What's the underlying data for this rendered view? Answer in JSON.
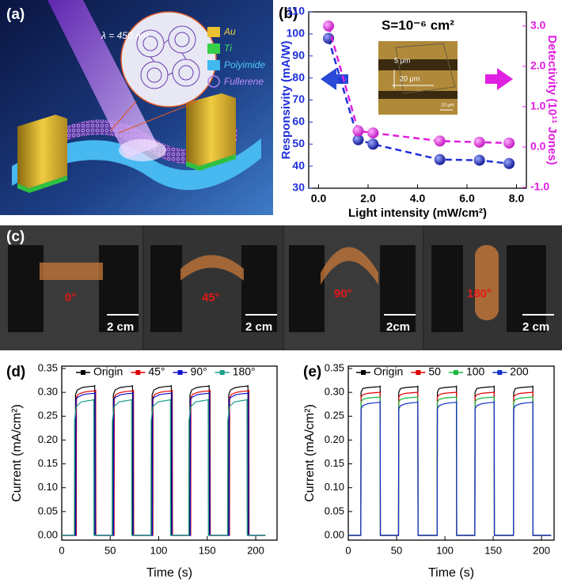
{
  "panels": {
    "a": {
      "label": "(a)",
      "wavelength": "λ = 450 nm",
      "legend": [
        "Au",
        "Ti",
        "Polyimide",
        "Fullerene"
      ]
    },
    "c": {
      "label": "(c)",
      "angles": [
        "0°",
        "45°",
        "90°",
        "180°"
      ],
      "scales": [
        "2 cm",
        "2 cm",
        "2cm",
        "2 cm"
      ]
    }
  },
  "chart_data": [
    {
      "type": "line",
      "label": "(b)",
      "annotation": "S=10⁻⁶ cm²",
      "inset_labels": [
        "5 μm",
        "20 μm",
        "10 μm"
      ],
      "xlabel": "Light intensity (mW/cm²)",
      "ylabel": "Responsivity (mA/W)",
      "y2label": "Detectivity (10¹¹ Jones)",
      "x": [
        0.4,
        1.6,
        2.2,
        4.9,
        6.5,
        7.7
      ],
      "series": [
        {
          "color": "#1f2fd8",
          "values": [
            98,
            52,
            50,
            43,
            42.7,
            41.2
          ]
        },
        {
          "color": "#e01ee0",
          "axis": "y2",
          "values": [
            3.0,
            0.4,
            0.35,
            0.15,
            0.12,
            0.1
          ]
        }
      ],
      "xlim": [
        -0.4,
        8.4
      ],
      "xticks": [
        {
          "value": 0,
          "label": "0.0"
        },
        {
          "value": 2,
          "label": "2.0"
        },
        {
          "value": 4,
          "label": "4.0"
        },
        {
          "value": 6,
          "label": "6.0"
        },
        {
          "value": 8,
          "label": "8.0"
        }
      ],
      "ylim": [
        30,
        110
      ],
      "yticks": [
        30,
        40,
        50,
        60,
        70,
        80,
        90,
        100,
        110
      ],
      "y2lim": [
        -1.02,
        3.35
      ],
      "y2ticks": [
        {
          "value": -1,
          "label": "-1.0"
        },
        {
          "value": 0,
          "label": "0.0"
        },
        {
          "value": 1,
          "label": "1.0"
        },
        {
          "value": 2,
          "label": "2.0"
        },
        {
          "value": 3,
          "label": "3.0"
        }
      ],
      "dashed": true,
      "markers": true
    },
    {
      "type": "line",
      "label": "(d)",
      "xlabel": "Time (s)",
      "ylabel": "Current (mA/cm²)",
      "series": [
        {
          "name": "Origin",
          "color": "#000000",
          "x": [
            0,
            14,
            14.2,
            16,
            21,
            27,
            33,
            34,
            34.2,
            53,
            53.2,
            55,
            60,
            66,
            72,
            73,
            73.2,
            93,
            93.2,
            95,
            100,
            106,
            112,
            113,
            113.2,
            132,
            132.2,
            134,
            139,
            145,
            151,
            152,
            152.2,
            172,
            172.2,
            174,
            179,
            185,
            191,
            192,
            192.2,
            210
          ],
          "values": [
            0,
            0,
            0.295,
            0.305,
            0.31,
            0.312,
            0.313,
            0.314,
            0,
            0,
            0.295,
            0.305,
            0.31,
            0.312,
            0.313,
            0.314,
            0,
            0,
            0.295,
            0.305,
            0.31,
            0.312,
            0.313,
            0.314,
            0,
            0,
            0.295,
            0.305,
            0.31,
            0.312,
            0.313,
            0.314,
            0,
            0,
            0.295,
            0.305,
            0.31,
            0.312,
            0.313,
            0.314,
            0,
            0
          ]
        },
        {
          "name": "45°",
          "color": "#e00000",
          "x": [
            0,
            15,
            15.2,
            17,
            22,
            28,
            34,
            35,
            35.2,
            54,
            54.2,
            56,
            61,
            67,
            73,
            74,
            74.2,
            94,
            94.2,
            96,
            101,
            107,
            113,
            114,
            114.2,
            133,
            133.2,
            135,
            140,
            146,
            152,
            153,
            153.2,
            173,
            173.2,
            175,
            180,
            186,
            192,
            193,
            193.2,
            210
          ],
          "values": [
            0,
            0,
            0.29,
            0.296,
            0.3,
            0.302,
            0.303,
            0.304,
            0,
            0,
            0.29,
            0.296,
            0.3,
            0.302,
            0.303,
            0.304,
            0,
            0,
            0.29,
            0.296,
            0.3,
            0.302,
            0.303,
            0.304,
            0,
            0,
            0.29,
            0.296,
            0.3,
            0.302,
            0.303,
            0.304,
            0,
            0,
            0.29,
            0.296,
            0.3,
            0.302,
            0.303,
            0.304,
            0,
            0
          ]
        },
        {
          "name": "90°",
          "color": "#1010d0",
          "x": [
            0,
            14.5,
            14.7,
            16.5,
            21.5,
            27.5,
            33.5,
            34.5,
            34.7,
            53.5,
            53.7,
            55.5,
            60.5,
            66.5,
            72.5,
            73.5,
            73.7,
            93.5,
            93.7,
            95.5,
            100.5,
            106.5,
            112.5,
            113.5,
            113.7,
            132.5,
            132.7,
            134.5,
            139.5,
            145.5,
            151.5,
            152.5,
            152.7,
            172.5,
            172.7,
            174.5,
            179.5,
            185.5,
            191.5,
            192.5,
            192.7,
            210
          ],
          "values": [
            0,
            0,
            0.285,
            0.29,
            0.295,
            0.297,
            0.298,
            0.299,
            0,
            0,
            0.285,
            0.29,
            0.295,
            0.297,
            0.298,
            0.299,
            0,
            0,
            0.285,
            0.29,
            0.295,
            0.297,
            0.298,
            0.299,
            0,
            0,
            0.285,
            0.29,
            0.295,
            0.297,
            0.298,
            0.299,
            0,
            0,
            0.285,
            0.29,
            0.295,
            0.297,
            0.298,
            0.299,
            0,
            0
          ]
        },
        {
          "name": "180°",
          "color": "#1a9e8a",
          "x": [
            0,
            13,
            13.2,
            15,
            20,
            26,
            32,
            33,
            33.2,
            52,
            52.2,
            54,
            59,
            65,
            71,
            72,
            72.2,
            92,
            92.2,
            94,
            99,
            105,
            111,
            112,
            112.2,
            131,
            131.2,
            133,
            138,
            144,
            150,
            151,
            151.2,
            171,
            171.2,
            173,
            178,
            184,
            190,
            191,
            191.2,
            210
          ],
          "values": [
            0,
            0,
            0.24,
            0.27,
            0.28,
            0.282,
            0.284,
            0.285,
            0,
            0,
            0.24,
            0.27,
            0.28,
            0.282,
            0.284,
            0.285,
            0,
            0,
            0.24,
            0.27,
            0.28,
            0.282,
            0.284,
            0.285,
            0,
            0,
            0.24,
            0.27,
            0.28,
            0.282,
            0.284,
            0.285,
            0,
            0,
            0.24,
            0.27,
            0.28,
            0.282,
            0.284,
            0.285,
            0,
            0
          ]
        }
      ],
      "xlim": [
        0,
        222
      ],
      "xticks": [
        0,
        50,
        100,
        150,
        200
      ],
      "ylim": [
        -0.01,
        0.355
      ],
      "yticks": [
        {
          "value": 0,
          "label": "0.00"
        },
        0.05,
        {
          "value": 0.1,
          "label": "0.10"
        },
        0.15,
        {
          "value": 0.2,
          "label": "0.20"
        },
        0.25,
        {
          "value": 0.3,
          "label": "0.30"
        },
        0.35
      ]
    },
    {
      "type": "line",
      "label": "(e)",
      "xlabel": "Time (s)",
      "ylabel": "Current (mA/cm²)",
      "x": [
        0,
        13,
        13.2,
        15,
        20,
        26,
        32,
        33,
        33.2,
        52,
        52.2,
        54,
        59,
        65,
        71,
        72,
        72.2,
        92,
        92.2,
        94,
        99,
        105,
        111,
        112,
        112.2,
        131,
        131.2,
        133,
        138,
        144,
        150,
        151,
        151.2,
        171,
        171.2,
        173,
        178,
        184,
        190,
        191,
        191.2,
        210
      ],
      "series": [
        {
          "name": "Origin",
          "color": "#000000",
          "values": [
            0,
            0,
            0.3,
            0.308,
            0.31,
            0.311,
            0.312,
            0.313,
            0,
            0,
            0.3,
            0.308,
            0.31,
            0.311,
            0.312,
            0.313,
            0,
            0,
            0.3,
            0.308,
            0.31,
            0.311,
            0.312,
            0.313,
            0,
            0,
            0.3,
            0.308,
            0.31,
            0.311,
            0.312,
            0.313,
            0,
            0,
            0.3,
            0.308,
            0.31,
            0.311,
            0.312,
            0.313,
            0,
            0
          ]
        },
        {
          "name": "50",
          "color": "#e00000",
          "values": [
            0,
            0,
            0.29,
            0.295,
            0.298,
            0.299,
            0.3,
            0.3,
            0,
            0,
            0.29,
            0.295,
            0.298,
            0.299,
            0.3,
            0.3,
            0,
            0,
            0.29,
            0.295,
            0.298,
            0.299,
            0.3,
            0.3,
            0,
            0,
            0.29,
            0.295,
            0.298,
            0.299,
            0.3,
            0.3,
            0,
            0,
            0.29,
            0.295,
            0.298,
            0.299,
            0.3,
            0.3,
            0,
            0
          ]
        },
        {
          "name": "100",
          "color": "#18b840",
          "values": [
            0,
            0,
            0.28,
            0.285,
            0.288,
            0.289,
            0.29,
            0.29,
            0,
            0,
            0.28,
            0.285,
            0.288,
            0.289,
            0.29,
            0.29,
            0,
            0,
            0.28,
            0.285,
            0.288,
            0.289,
            0.29,
            0.29,
            0,
            0,
            0.28,
            0.285,
            0.288,
            0.289,
            0.29,
            0.29,
            0,
            0,
            0.28,
            0.285,
            0.288,
            0.289,
            0.29,
            0.29,
            0,
            0
          ]
        },
        {
          "name": "200",
          "color": "#1030c8",
          "values": [
            0,
            0,
            0.265,
            0.272,
            0.276,
            0.278,
            0.279,
            0.28,
            0,
            0,
            0.265,
            0.272,
            0.276,
            0.278,
            0.279,
            0.28,
            0,
            0,
            0.265,
            0.272,
            0.276,
            0.278,
            0.279,
            0.28,
            0,
            0,
            0.265,
            0.272,
            0.276,
            0.278,
            0.279,
            0.28,
            0,
            0,
            0.265,
            0.272,
            0.276,
            0.278,
            0.279,
            0.28,
            0,
            0
          ]
        }
      ],
      "xlim": [
        0,
        213
      ],
      "xticks": [
        0,
        50,
        100,
        150,
        200
      ],
      "ylim": [
        -0.01,
        0.355
      ],
      "yticks": [
        {
          "value": 0,
          "label": "0.00"
        },
        0.05,
        {
          "value": 0.1,
          "label": "0.10"
        },
        0.15,
        {
          "value": 0.2,
          "label": "0.20"
        },
        0.25,
        {
          "value": 0.3,
          "label": "0.30"
        },
        0.35
      ]
    }
  ]
}
